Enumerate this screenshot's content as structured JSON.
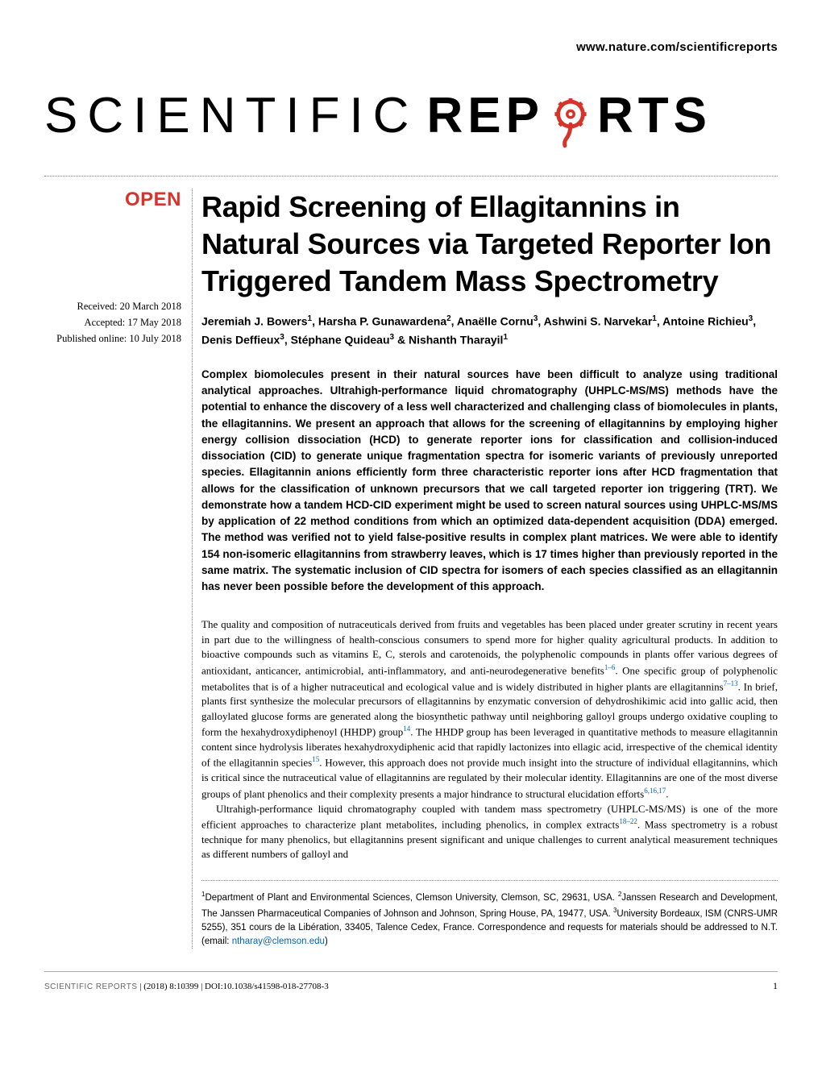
{
  "header": {
    "url": "www.nature.com/scientificreports"
  },
  "logo": {
    "scientific": "SCIENTIFIC",
    "rep": "REP",
    "rts": "RTS",
    "gear_color": "#d6342b"
  },
  "left_col": {
    "open_badge": "OPEN",
    "received": "Received: 20 March 2018",
    "accepted": "Accepted: 17 May 2018",
    "published": "Published online: 10 July 2018"
  },
  "article": {
    "title": "Rapid Screening of Ellagitannins in Natural Sources via Targeted Reporter Ion Triggered Tandem Mass Spectrometry",
    "authors_html": "Jeremiah J. Bowers<sup>1</sup>, Harsha P. Gunawardena<sup>2</sup>, Anaëlle Cornu<sup>3</sup>, Ashwini S. Narvekar<sup>1</sup>, Antoine Richieu<sup>3</sup>, Denis Deffieux<sup>3</sup>, Stéphane Quideau<sup>3</sup> & Nishanth Tharayil<sup>1</sup>",
    "abstract": "Complex biomolecules present in their natural sources have been difficult to analyze using traditional analytical approaches. Ultrahigh-performance liquid chromatography (UHPLC-MS/MS) methods have the potential to enhance the discovery of a less well characterized and challenging class of biomolecules in plants, the ellagitannins. We present an approach that allows for the screening of ellagitannins by employing higher energy collision dissociation (HCD) to generate reporter ions for classification and collision-induced dissociation (CID) to generate unique fragmentation spectra for isomeric variants of previously unreported species. Ellagitannin anions efficiently form three characteristic reporter ions after HCD fragmentation that allows for the classification of unknown precursors that we call targeted reporter ion triggering (TRT). We demonstrate how a tandem HCD-CID experiment might be used to screen natural sources using UHPLC-MS/MS by application of 22 method conditions from which an optimized data-dependent acquisition (DDA) emerged. The method was verified not to yield false-positive results in complex plant matrices. We were able to identify 154 non-isomeric ellagitannins from strawberry leaves, which is 17 times higher than previously reported in the same matrix. The systematic inclusion of CID spectra for isomers of each species classified as an ellagitannin has never been possible before the development of this approach."
  },
  "body": {
    "para1_pre": "The quality and composition of nutraceuticals derived from fruits and vegetables has been placed under greater scrutiny in recent years in part due to the willingness of health-conscious consumers to spend more for higher quality agricultural products. In addition to bioactive compounds such as vitamins E, C, sterols and carotenoids, the polyphenolic compounds in plants offer various degrees of antioxidant, anticancer, antimicrobial, anti-inflammatory, and anti-neurodegenerative benefits",
    "ref1": "1–6",
    "para1_mid1": ". One specific group of polyphenolic metabolites that is of a higher nutraceutical and ecological value and is widely distributed in higher plants are ellagitannins",
    "ref2": "7–13",
    "para1_mid2": ". In brief, plants first synthesize the molecular precursors of ellagitannins by enzymatic conversion of dehydroshikimic acid into gallic acid, then galloylated glucose forms are generated along the biosynthetic pathway until neighboring galloyl groups undergo oxidative coupling to form the hexahydroxydiphenoyl (HHDP) group",
    "ref3": "14",
    "para1_mid3": ". The HHDP group has been leveraged in quantitative methods to measure ellagitannin content since hydrolysis liberates hexahydroxydiphenic acid that rapidly lactonizes into ellagic acid, irrespective of the chemical identity of the ellagitannin species",
    "ref4": "15",
    "para1_mid4": ". However, this approach does not provide much insight into the structure of individual ellagitannins, which is critical since the nutraceutical value of ellagitannins are regulated by their molecular identity. Ellagitannins are one of the most diverse groups of plant phenolics and their complexity presents a major hindrance to structural elucidation efforts",
    "ref5": "6,16,17",
    "para1_end": ".",
    "para2_pre": "Ultrahigh-performance liquid chromatography coupled with tandem mass spectrometry (UHPLC-MS/MS) is one of the more efficient approaches to characterize plant metabolites, including phenolics, in complex extracts",
    "ref6": "18–22",
    "para2_end": ". Mass spectrometry is a robust technique for many phenolics, but ellagitannins present significant and unique challenges to current analytical measurement techniques as different numbers of galloyl and"
  },
  "affiliations": {
    "text_html": "<sup>1</sup>Department of Plant and Environmental Sciences, Clemson University, Clemson, SC, 29631, USA. <sup>2</sup>Janssen Research and Development, The Janssen Pharmaceutical Companies of Johnson and Johnson, Spring House, PA, 19477, USA. <sup>3</sup>University Bordeaux, ISM (CNRS-UMR 5255), 351 cours de la Libération, 33405, Talence Cedex, France. Correspondence and requests for materials should be addressed to N.T. (email: ",
    "email": "ntharay@clemson.edu",
    "closing": ")"
  },
  "footer": {
    "journal": "SCIENTIFIC REPORTS",
    "citation": " | (2018) 8:10399 | DOI:10.1038/s41598-018-27708-3",
    "page_number": "1"
  },
  "colors": {
    "accent": "#d6342b",
    "link": "#0066bb",
    "text": "#000000",
    "footer_grey": "#666666"
  }
}
